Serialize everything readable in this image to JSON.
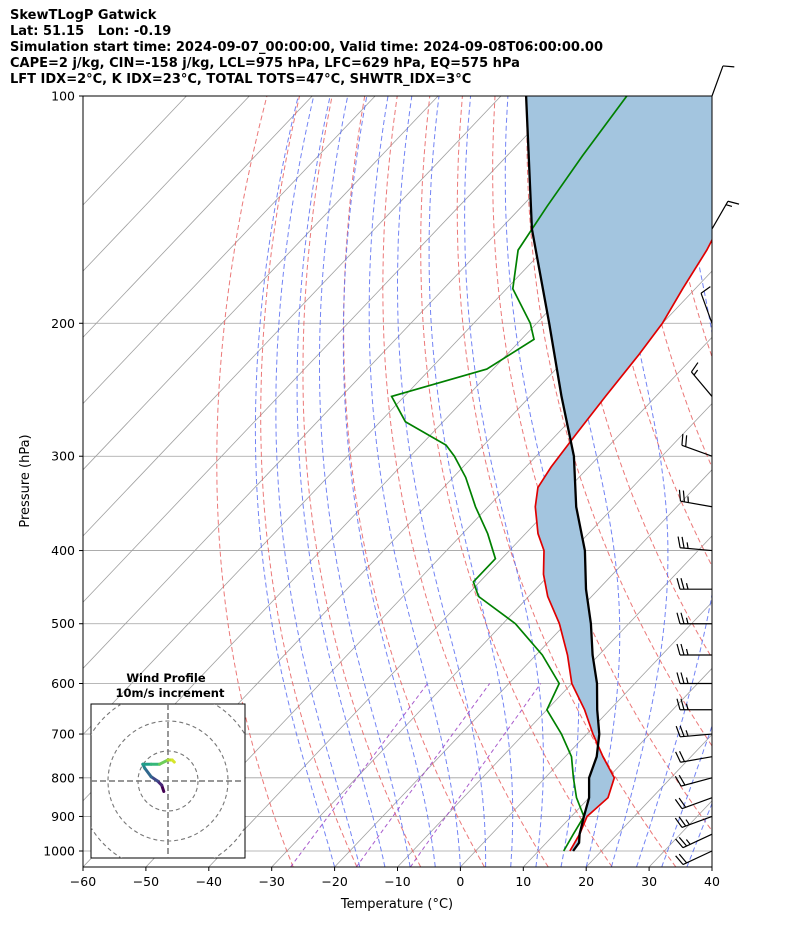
{
  "header": {
    "title": "SkewTLogP Gatwick",
    "location": "Lat: 51.15   Lon: -0.19",
    "times": "Simulation start time: 2024-09-07_00:00:00, Valid time: 2024-09-08T06:00:00.00",
    "params1": "CAPE=2 j/kg, CIN=-158 j/kg, LCL=975 hPa, LFC=629 hPa, EQ=575 hPa",
    "params2": "LFT IDX=2$^\\circ$C, K IDX=23$^\\circ$C, TOTAL TOTS=47$^\\circ$C, SHWTR_IDX=3$^\\circ$C"
  },
  "chart_data": {
    "type": "line",
    "xlabel": "Temperature ($^\\circ$C)",
    "ylabel": "Pressure (hPa)",
    "xlim": [
      -60,
      40
    ],
    "ylim": [
      1050,
      100
    ],
    "yscale": "log",
    "skew": true,
    "x_ticks": [
      -60,
      -50,
      -40,
      -30,
      -20,
      -10,
      0,
      10,
      20,
      30,
      40
    ],
    "y_ticks": [
      100,
      200,
      300,
      400,
      500,
      600,
      700,
      800,
      900,
      1000
    ],
    "grid": true,
    "series": [
      {
        "color": "#e00000",
        "points": [
          [
            100,
            -62
          ],
          [
            120,
            -58
          ],
          [
            140,
            -57
          ],
          [
            160,
            -54
          ],
          [
            180,
            -52
          ],
          [
            200,
            -50
          ],
          [
            220,
            -49
          ],
          [
            250,
            -48
          ],
          [
            280,
            -47
          ],
          [
            310,
            -46
          ],
          [
            330,
            -45
          ],
          [
            350,
            -42.5
          ],
          [
            380,
            -38
          ],
          [
            400,
            -34.5
          ],
          [
            430,
            -31
          ],
          [
            460,
            -27
          ],
          [
            500,
            -21
          ],
          [
            550,
            -15
          ],
          [
            600,
            -10
          ],
          [
            650,
            -4
          ],
          [
            700,
            1
          ],
          [
            750,
            6
          ],
          [
            800,
            11
          ],
          [
            850,
            13
          ],
          [
            900,
            12.5
          ],
          [
            950,
            14
          ],
          [
            1000,
            15
          ]
        ]
      },
      {
        "color": "#008000",
        "points": [
          [
            100,
            -90
          ],
          [
            120,
            -88
          ],
          [
            140,
            -86
          ],
          [
            160,
            -84
          ],
          [
            180,
            -79
          ],
          [
            200,
            -71
          ],
          [
            210,
            -68
          ],
          [
            230,
            -71
          ],
          [
            250,
            -82
          ],
          [
            270,
            -76
          ],
          [
            290,
            -66
          ],
          [
            300,
            -63
          ],
          [
            320,
            -58
          ],
          [
            350,
            -52
          ],
          [
            380,
            -46
          ],
          [
            410,
            -41
          ],
          [
            440,
            -41
          ],
          [
            460,
            -38
          ],
          [
            500,
            -28
          ],
          [
            550,
            -19
          ],
          [
            600,
            -12
          ],
          [
            650,
            -10
          ],
          [
            700,
            -4
          ],
          [
            750,
            1
          ],
          [
            800,
            4.5
          ],
          [
            850,
            8
          ],
          [
            900,
            12
          ],
          [
            950,
            13
          ],
          [
            1000,
            14
          ]
        ]
      },
      {
        "color": "#000000",
        "points": [
          [
            1000,
            15.5
          ],
          [
            975,
            15.2
          ],
          [
            950,
            14
          ],
          [
            900,
            12
          ],
          [
            850,
            10
          ],
          [
            800,
            7
          ],
          [
            750,
            5
          ],
          [
            700,
            2
          ],
          [
            650,
            -2
          ],
          [
            600,
            -6
          ],
          [
            550,
            -11
          ],
          [
            500,
            -16
          ],
          [
            450,
            -22
          ],
          [
            400,
            -28
          ],
          [
            350,
            -36
          ],
          [
            300,
            -44
          ],
          [
            250,
            -55
          ],
          [
            200,
            -68
          ],
          [
            150,
            -85
          ],
          [
            100,
            -106
          ]
        ]
      }
    ],
    "wind_barbs": [
      {
        "p": 100,
        "speed": 10,
        "dir": 20
      },
      {
        "p": 150,
        "speed": 15,
        "dir": 30
      },
      {
        "p": 200,
        "speed": 10,
        "dir": 340
      },
      {
        "p": 250,
        "speed": 15,
        "dir": 320
      },
      {
        "p": 300,
        "speed": 20,
        "dir": 290
      },
      {
        "p": 350,
        "speed": 25,
        "dir": 280
      },
      {
        "p": 400,
        "speed": 25,
        "dir": 275
      },
      {
        "p": 450,
        "speed": 25,
        "dir": 270
      },
      {
        "p": 500,
        "speed": 25,
        "dir": 270
      },
      {
        "p": 550,
        "speed": 25,
        "dir": 270
      },
      {
        "p": 600,
        "speed": 25,
        "dir": 270
      },
      {
        "p": 650,
        "speed": 25,
        "dir": 270
      },
      {
        "p": 700,
        "speed": 25,
        "dir": 265
      },
      {
        "p": 750,
        "speed": 20,
        "dir": 260
      },
      {
        "p": 800,
        "speed": 20,
        "dir": 255
      },
      {
        "p": 850,
        "speed": 20,
        "dir": 250
      },
      {
        "p": 900,
        "speed": 25,
        "dir": 250
      },
      {
        "p": 950,
        "speed": 25,
        "dir": 245
      },
      {
        "p": 1000,
        "speed": 20,
        "dir": 245
      }
    ],
    "hodograph": {
      "title": "Wind Profile",
      "subtitle": "10m/s increment",
      "points": [
        [
          -1,
          -2.5
        ],
        [
          -1.5,
          -1
        ],
        [
          -2.5,
          0
        ],
        [
          -4,
          1
        ],
        [
          -5.5,
          3
        ],
        [
          -6,
          4
        ],
        [
          -4,
          4
        ],
        [
          -2,
          4
        ],
        [
          0,
          5
        ],
        [
          1,
          5
        ],
        [
          1.5,
          4.5
        ]
      ]
    },
    "colors": {
      "temperature": "#e00000",
      "dewpoint": "#008000",
      "parcel": "#000000",
      "cape_fill": "#a3c5df",
      "dry_adiabats": "#e86060",
      "moist_adiabats": "#5a6ff2",
      "mixing_ratio": "#9a40c4",
      "isotherms": "#a0a0a0"
    }
  }
}
